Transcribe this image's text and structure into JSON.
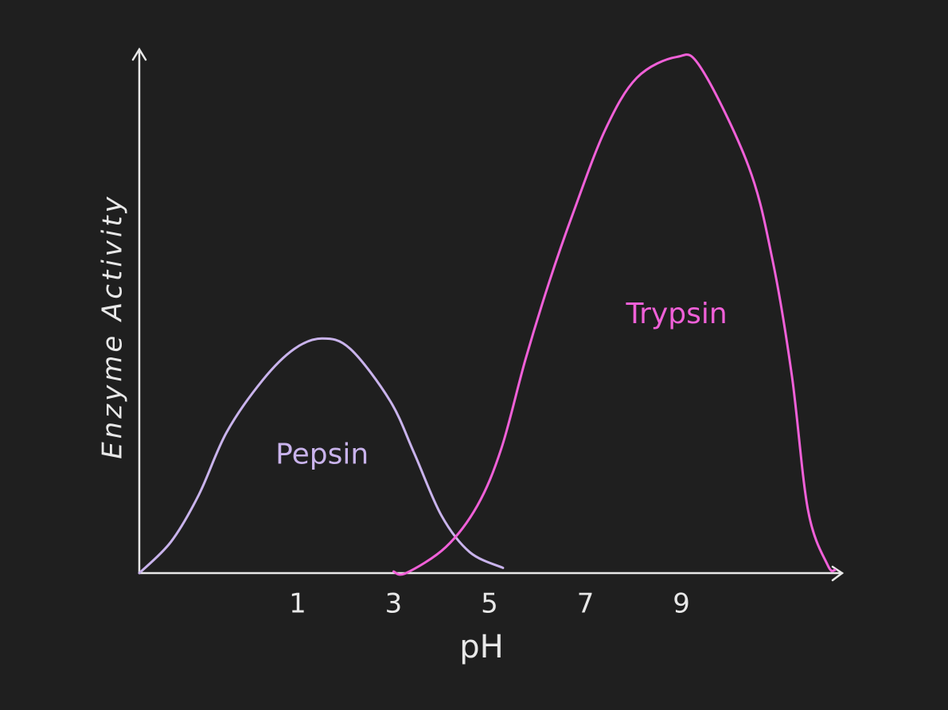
{
  "chart_data": {
    "type": "line",
    "x_label": "pH",
    "y_label": "Enzyme Activity",
    "xlim": [
      -2.3,
      12.3
    ],
    "ylim": [
      0,
      100
    ],
    "xticks": [
      1,
      3,
      5,
      7,
      9
    ],
    "series": [
      {
        "name": "Pepsin",
        "color": "#c9b3ec",
        "x": [
          -2.3,
          -1.64,
          -1.06,
          -0.48,
          0.27,
          0.93,
          1.51,
          2.1,
          2.93,
          3.43,
          4.0,
          4.59,
          5.28
        ],
        "values": [
          0,
          6,
          15,
          27,
          37,
          43,
          45,
          43,
          33,
          23,
          11,
          4,
          1
        ]
      },
      {
        "name": "Trypsin",
        "color": "#f060d8",
        "x": [
          3.0,
          3.26,
          4.09,
          4.75,
          5.25,
          5.75,
          6.25,
          6.74,
          7.41,
          8.07,
          8.9,
          9.4,
          10.4,
          10.9,
          11.3,
          11.64,
          12.05,
          12.2
        ],
        "values": [
          0.3,
          0,
          5,
          13,
          24,
          41,
          56,
          69,
          85,
          95,
          99,
          97,
          78,
          60,
          38,
          12,
          1.5,
          0.6
        ]
      }
    ]
  }
}
